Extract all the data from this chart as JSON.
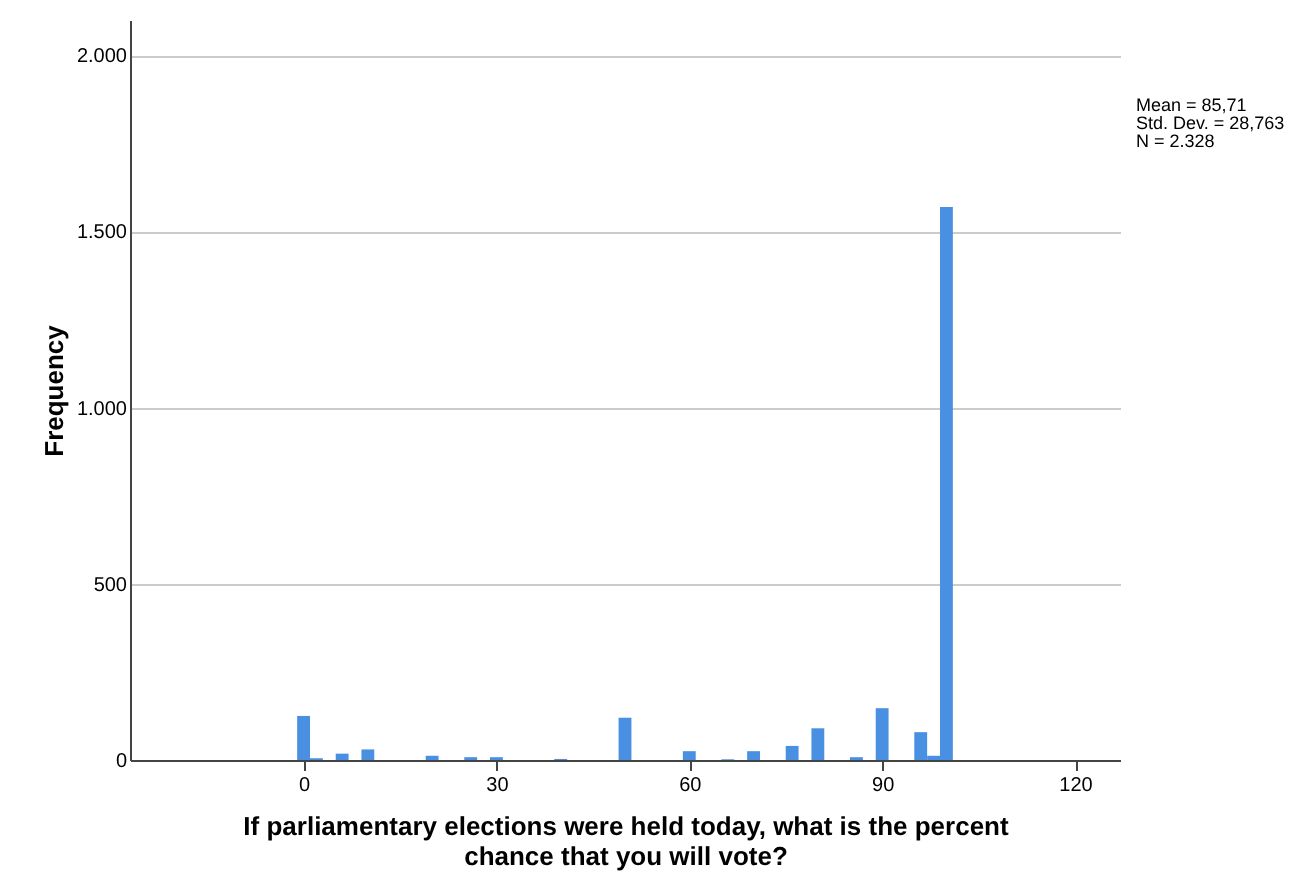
{
  "chart_data": {
    "type": "histogram",
    "xlabel": "If parliamentary elections were held today, what is the percent chance that you will vote?",
    "ylabel": "Frequency",
    "annotations": [
      "Mean = 85,71",
      "Std. Dev. = 28,763",
      "N = 2.328"
    ],
    "bins": [
      -1,
      1,
      3,
      5,
      7,
      9,
      11,
      13,
      15,
      17,
      19,
      21,
      23,
      25,
      27,
      29,
      31,
      33,
      35,
      37,
      39,
      41,
      43,
      45,
      47,
      49,
      51,
      53,
      55,
      57,
      59,
      61,
      63,
      65,
      67,
      69,
      71,
      73,
      75,
      77,
      79,
      81,
      83,
      85,
      87,
      89,
      91,
      93,
      95,
      97,
      99,
      101
    ],
    "values": [
      125,
      5,
      0,
      18,
      0,
      30,
      0,
      0,
      0,
      0,
      12,
      0,
      0,
      8,
      0,
      8,
      0,
      0,
      0,
      0,
      3,
      0,
      0,
      0,
      0,
      120,
      0,
      0,
      0,
      0,
      25,
      0,
      0,
      2,
      0,
      25,
      0,
      0,
      40,
      0,
      90,
      0,
      0,
      8,
      0,
      147,
      0,
      0,
      79,
      12,
      1569
    ],
    "color": "#4a90e2",
    "xlim": [
      -27,
      127
    ],
    "xticks": [
      0,
      30,
      60,
      90,
      120
    ],
    "ylim": [
      0,
      2100
    ],
    "yticks": [
      0,
      500,
      {
        "value": 1000,
        "label": "1.000"
      },
      {
        "value": 1500,
        "label": "1.500"
      },
      {
        "value": 2000,
        "label": "2.000"
      }
    ],
    "grid": "y"
  }
}
